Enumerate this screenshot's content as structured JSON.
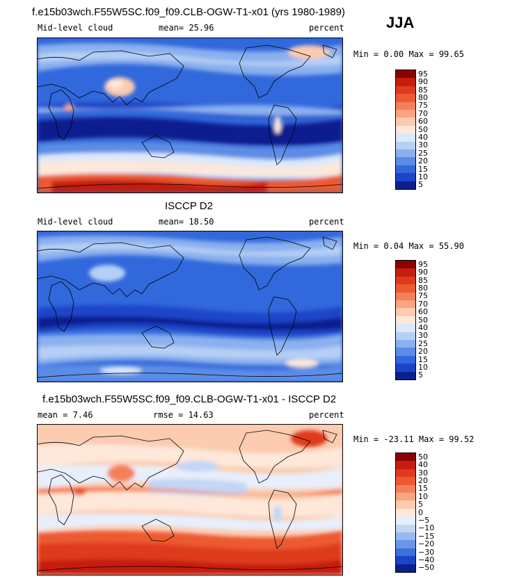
{
  "season": "JJA",
  "panels": [
    {
      "title": "f.e15b03wch.F55W5SC.f09_f09.CLB-OGW-T1-x01 (yrs 1980-1989)",
      "left_label": "Mid-level cloud",
      "center_label": "mean=  25.96",
      "units": "percent",
      "range": "Min =   0.00 Max =  99.65",
      "colorbar_labels": [
        "95",
        "90",
        "85",
        "80",
        "75",
        "70",
        "60",
        "50",
        "40",
        "30",
        "25",
        "20",
        "15",
        "10",
        "5"
      ],
      "colorbar_colors": [
        "#8b0000",
        "#c41e0e",
        "#de3a1c",
        "#ec5a32",
        "#f4805a",
        "#f8a582",
        "#fccbb0",
        "#fde8da",
        "#dbe8fb",
        "#b5cff5",
        "#8ab0ee",
        "#5b8de6",
        "#3168dc",
        "#1d44c8",
        "#0b1f8e"
      ]
    },
    {
      "title": "ISCCP D2",
      "left_label": "Mid-level cloud",
      "center_label": "mean=  18.50",
      "units": "percent",
      "range": "Min =   0.04 Max =  55.90",
      "colorbar_labels": [
        "95",
        "90",
        "85",
        "80",
        "75",
        "70",
        "60",
        "50",
        "40",
        "30",
        "25",
        "20",
        "15",
        "10",
        "5"
      ],
      "colorbar_colors": [
        "#8b0000",
        "#c41e0e",
        "#de3a1c",
        "#ec5a32",
        "#f4805a",
        "#f8a582",
        "#fccbb0",
        "#fde8da",
        "#dbe8fb",
        "#b5cff5",
        "#8ab0ee",
        "#5b8de6",
        "#3168dc",
        "#1d44c8",
        "#0b1f8e"
      ]
    },
    {
      "title": "f.e15b03wch.F55W5SC.f09_f09.CLB-OGW-T1-x01 - ISCCP D2",
      "left_label": "mean =   7.46",
      "center_label": "rmse =  14.63",
      "units": "percent",
      "range": "Min = -23.11 Max =  99.52",
      "colorbar_labels": [
        "50",
        "40",
        "30",
        "20",
        "15",
        "10",
        "5",
        "0",
        "−5",
        "−10",
        "−15",
        "−20",
        "−30",
        "−40",
        "−50"
      ],
      "colorbar_colors": [
        "#8b0000",
        "#c41e0e",
        "#de3a1c",
        "#ec5a32",
        "#f4805a",
        "#f8a582",
        "#fccbb0",
        "#fde8da",
        "#e8effc",
        "#c2d6f6",
        "#98b8f0",
        "#6a96e8",
        "#3c70dc",
        "#1a45c4",
        "#0b1f8e"
      ]
    }
  ]
}
